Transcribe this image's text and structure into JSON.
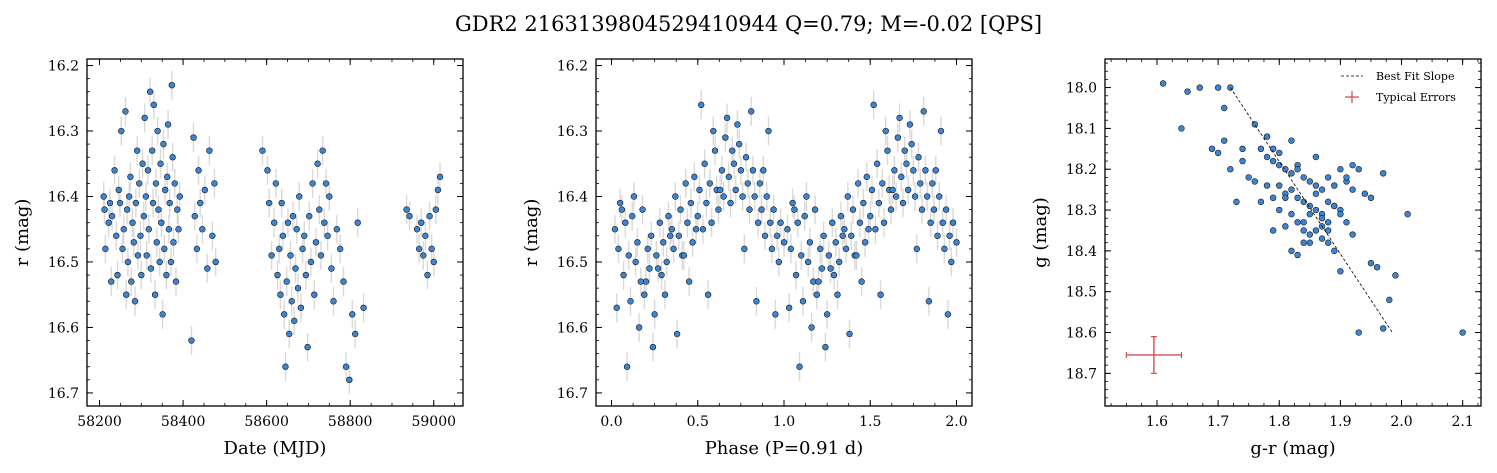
{
  "figure": {
    "title": "GDR2 2163139804529410944  Q=0.79; M=-0.02 [QPS]"
  },
  "colors": {
    "point_fill": "#3c85d4",
    "point_edge": "#1a1a1a",
    "errorbar": "#d9d9d9",
    "fit_line": "#000000",
    "typical_error": "#d05050"
  },
  "chart_data": [
    {
      "type": "scatter",
      "title": "",
      "xlabel": "Date (MJD)",
      "ylabel": "r (mag)",
      "xlim": [
        58170,
        59070
      ],
      "ylim": [
        16.72,
        16.19
      ],
      "y_inverted": true,
      "xticks": [
        58200,
        58400,
        58600,
        58800,
        59000
      ],
      "yticks": [
        16.2,
        16.3,
        16.4,
        16.5,
        16.6,
        16.7
      ],
      "xtick_labels": [
        "58200",
        "58400",
        "58600",
        "58800",
        "59000"
      ],
      "ytick_labels": [
        "16.2",
        "16.3",
        "16.4",
        "16.5",
        "16.6",
        "16.7"
      ],
      "series": [
        {
          "x": [
            58210,
            58212,
            58214,
            58222,
            58225,
            58228,
            58230,
            58236,
            58240,
            58243,
            58246,
            58249,
            58252,
            58255,
            58258,
            58262,
            58264,
            58266,
            58268,
            58271,
            58274,
            58276,
            58279,
            58282,
            58285,
            58287,
            58290,
            58292,
            58295,
            58298,
            58300,
            58303,
            58306,
            58308,
            58311,
            58313,
            58316,
            58318,
            58321,
            58323,
            58326,
            58328,
            58330,
            58333,
            58335,
            58337,
            58339,
            58341,
            58344,
            58346,
            58348,
            58351,
            58353,
            58355,
            58357,
            58360,
            58362,
            58364,
            58366,
            58368,
            58371,
            58373,
            58375,
            58377,
            58380,
            58383,
            58386,
            58389,
            58392,
            58420,
            58425,
            58428,
            58433,
            58437,
            58441,
            58446,
            58452,
            58458,
            58463,
            58470,
            58475,
            58478,
            58590,
            58602,
            58606,
            58612,
            58618,
            58622,
            58626,
            58630,
            58633,
            58636,
            58639,
            58642,
            58645,
            58648,
            58651,
            58654,
            58657,
            58660,
            58663,
            58666,
            58669,
            58672,
            58675,
            58678,
            58682,
            58686,
            58690,
            58694,
            58698,
            58702,
            58706,
            58710,
            58714,
            58718,
            58722,
            58726,
            58730,
            58734,
            58738,
            58742,
            58746,
            58750,
            58755,
            58760,
            58768,
            58776,
            58784,
            58790,
            58798,
            58805,
            58812,
            58818,
            58832,
            58935,
            58942,
            58960,
            58965,
            58970,
            58975,
            58980,
            58985,
            58990,
            58995,
            59000,
            59005,
            59010,
            59015
          ],
          "y": [
            16.4,
            16.42,
            16.48,
            16.44,
            16.41,
            16.53,
            16.43,
            16.36,
            16.46,
            16.52,
            16.39,
            16.41,
            16.3,
            16.48,
            16.45,
            16.27,
            16.55,
            16.42,
            16.5,
            16.4,
            16.37,
            16.53,
            16.44,
            16.47,
            16.56,
            16.41,
            16.33,
            16.49,
            16.38,
            16.46,
            16.52,
            16.35,
            16.43,
            16.28,
            16.4,
            16.49,
            16.36,
            16.45,
            16.24,
            16.51,
            16.33,
            16.41,
            16.26,
            16.55,
            16.38,
            16.47,
            16.3,
            16.42,
            16.5,
            16.35,
            16.44,
            16.58,
            16.32,
            16.48,
            16.39,
            16.52,
            16.37,
            16.29,
            16.45,
            16.41,
            16.5,
            16.23,
            16.34,
            16.47,
            16.38,
            16.53,
            16.42,
            16.45,
            16.4,
            16.62,
            16.31,
            16.43,
            16.48,
            16.36,
            16.41,
            16.45,
            16.39,
            16.51,
            16.33,
            16.46,
            16.38,
            16.5,
            16.33,
            16.36,
            16.41,
            16.49,
            16.44,
            16.38,
            16.52,
            16.48,
            16.55,
            16.41,
            16.46,
            16.58,
            16.66,
            16.53,
            16.44,
            16.61,
            16.49,
            16.56,
            16.43,
            16.59,
            16.51,
            16.45,
            16.54,
            16.4,
            16.57,
            16.48,
            16.46,
            16.52,
            16.63,
            16.43,
            16.5,
            16.38,
            16.55,
            16.47,
            16.35,
            16.42,
            16.49,
            16.33,
            16.44,
            16.38,
            16.46,
            16.4,
            16.51,
            16.56,
            16.45,
            16.48,
            16.53,
            16.66,
            16.68,
            16.58,
            16.61,
            16.44,
            16.57,
            16.42,
            16.43,
            16.45,
            16.48,
            16.44,
            16.49,
            16.46,
            16.52,
            16.43,
            16.48,
            16.5,
            16.42,
            16.39,
            16.37
          ],
          "yerr": 0.022
        }
      ]
    },
    {
      "type": "scatter",
      "title": "",
      "xlabel": "Phase (P=0.91 d)",
      "ylabel": "r (mag)",
      "xlim": [
        -0.09,
        2.09
      ],
      "ylim": [
        16.72,
        16.19
      ],
      "y_inverted": true,
      "xticks": [
        0.0,
        0.5,
        1.0,
        1.5,
        2.0
      ],
      "yticks": [
        16.2,
        16.3,
        16.4,
        16.5,
        16.6,
        16.7
      ],
      "xtick_labels": [
        "0.0",
        "0.5",
        "1.0",
        "1.5",
        "2.0"
      ],
      "ytick_labels": [
        "16.2",
        "16.3",
        "16.4",
        "16.5",
        "16.6",
        "16.7"
      ],
      "period_days": 0.91,
      "phase_folded": true,
      "series": [
        {
          "x": [
            0.02,
            0.04,
            0.05,
            0.07,
            0.08,
            0.1,
            0.11,
            0.12,
            0.14,
            0.15,
            0.17,
            0.18,
            0.19,
            0.21,
            0.22,
            0.23,
            0.25,
            0.26,
            0.28,
            0.29,
            0.3,
            0.32,
            0.33,
            0.35,
            0.36,
            0.37,
            0.39,
            0.4,
            0.41,
            0.43,
            0.44,
            0.46,
            0.47,
            0.48,
            0.5,
            0.51,
            0.53,
            0.54,
            0.55,
            0.57,
            0.58,
            0.6,
            0.61,
            0.62,
            0.64,
            0.65,
            0.66,
            0.68,
            0.69,
            0.71,
            0.72,
            0.73,
            0.75,
            0.76,
            0.78,
            0.79,
            0.8,
            0.82,
            0.83,
            0.85,
            0.86,
            0.87,
            0.89,
            0.9,
            0.92,
            0.93,
            0.94,
            0.96,
            0.97,
            0.98,
            1.0,
            0.03,
            0.09,
            0.16,
            0.24,
            0.31,
            0.38,
            0.45,
            0.52,
            0.59,
            0.67,
            0.74,
            0.81,
            0.88,
            0.95,
            0.06,
            0.13,
            0.2,
            0.27,
            0.34,
            0.42,
            0.49,
            0.56,
            0.63,
            0.7,
            0.77,
            0.84,
            0.91
          ],
          "y": [
            16.45,
            16.48,
            16.41,
            16.52,
            16.44,
            16.49,
            16.56,
            16.43,
            16.5,
            16.47,
            16.53,
            16.42,
            16.55,
            16.48,
            16.51,
            16.46,
            16.58,
            16.49,
            16.44,
            16.52,
            16.47,
            16.5,
            16.43,
            16.45,
            16.48,
            16.4,
            16.46,
            16.42,
            16.49,
            16.38,
            16.44,
            16.41,
            16.47,
            16.37,
            16.43,
            16.39,
            16.45,
            16.35,
            16.41,
            16.38,
            16.44,
            16.33,
            16.39,
            16.42,
            16.36,
            16.4,
            16.31,
            16.37,
            16.41,
            16.35,
            16.39,
            16.29,
            16.36,
            16.4,
            16.34,
            16.38,
            16.42,
            16.36,
            16.4,
            16.44,
            16.38,
            16.42,
            16.46,
            16.4,
            16.44,
            16.48,
            16.42,
            16.46,
            16.5,
            16.44,
            16.47,
            16.57,
            16.66,
            16.6,
            16.63,
            16.55,
            16.61,
            16.53,
            16.26,
            16.3,
            16.28,
            16.32,
            16.27,
            16.36,
            16.58,
            16.42,
            16.4,
            16.53,
            16.51,
            16.46,
            16.49,
            16.45,
            16.55,
            16.39,
            16.33,
            16.48,
            16.56,
            16.3
          ],
          "yerr": 0.022,
          "repeat_offset": 1.0
        }
      ]
    },
    {
      "type": "scatter",
      "title": "",
      "xlabel": "g-r (mag)",
      "ylabel": "g (mag)",
      "xlim": [
        1.515,
        2.13
      ],
      "ylim": [
        18.78,
        17.93
      ],
      "y_inverted": true,
      "xticks": [
        1.6,
        1.7,
        1.8,
        1.9,
        2.0,
        2.1
      ],
      "yticks": [
        18.0,
        18.1,
        18.2,
        18.3,
        18.4,
        18.5,
        18.6,
        18.7
      ],
      "xtick_labels": [
        "1.6",
        "1.7",
        "1.8",
        "1.9",
        "2.0",
        "2.1"
      ],
      "ytick_labels": [
        "18.0",
        "18.1",
        "18.2",
        "18.3",
        "18.4",
        "18.5",
        "18.6",
        "18.7"
      ],
      "legend": {
        "position": "top-right",
        "entries": [
          "Best Fit Slope",
          "Typical Errors"
        ]
      },
      "best_fit": {
        "x": [
          1.72,
          1.985
        ],
        "y": [
          18.0,
          18.6
        ]
      },
      "typical_error": {
        "x": 1.595,
        "y": 18.655,
        "xerr": 0.045,
        "yerr": 0.045
      },
      "series": [
        {
          "x": [
            1.61,
            1.64,
            1.65,
            1.67,
            1.69,
            1.7,
            1.71,
            1.71,
            1.72,
            1.73,
            1.74,
            1.75,
            1.76,
            1.76,
            1.77,
            1.77,
            1.78,
            1.78,
            1.79,
            1.79,
            1.79,
            1.8,
            1.8,
            1.8,
            1.81,
            1.81,
            1.81,
            1.82,
            1.82,
            1.82,
            1.82,
            1.83,
            1.83,
            1.83,
            1.83,
            1.84,
            1.84,
            1.84,
            1.84,
            1.85,
            1.85,
            1.85,
            1.85,
            1.86,
            1.86,
            1.86,
            1.86,
            1.87,
            1.87,
            1.87,
            1.87,
            1.88,
            1.88,
            1.88,
            1.88,
            1.89,
            1.89,
            1.89,
            1.9,
            1.9,
            1.9,
            1.91,
            1.91,
            1.92,
            1.92,
            1.93,
            1.94,
            1.95,
            1.96,
            1.97,
            1.97,
            1.98,
            1.99,
            2.01,
            2.1,
            1.7,
            1.72,
            1.74,
            1.78,
            1.8,
            1.82,
            1.84,
            1.86,
            1.88,
            1.9,
            1.92,
            1.85,
            1.87,
            1.89,
            1.83,
            1.81,
            1.79,
            1.93,
            1.95,
            1.91
          ],
          "y": [
            17.99,
            18.1,
            18.01,
            18.0,
            18.15,
            18.0,
            18.05,
            18.13,
            18.0,
            18.28,
            18.15,
            18.22,
            18.09,
            18.23,
            18.15,
            18.28,
            18.17,
            18.24,
            18.18,
            18.27,
            18.35,
            18.19,
            18.24,
            18.3,
            18.2,
            18.26,
            18.34,
            18.21,
            18.25,
            18.31,
            18.4,
            18.19,
            18.27,
            18.33,
            18.41,
            18.22,
            18.28,
            18.35,
            18.38,
            18.23,
            18.29,
            18.36,
            18.31,
            18.24,
            18.3,
            18.35,
            18.26,
            18.25,
            18.31,
            18.37,
            18.34,
            18.22,
            18.28,
            18.33,
            18.38,
            18.24,
            18.29,
            18.4,
            18.2,
            18.3,
            18.45,
            18.23,
            18.33,
            18.19,
            18.25,
            18.6,
            18.26,
            18.43,
            18.44,
            18.21,
            18.59,
            18.52,
            18.46,
            18.31,
            18.6,
            18.16,
            18.2,
            18.18,
            18.12,
            18.16,
            18.13,
            18.33,
            18.17,
            18.35,
            18.31,
            18.36,
            18.38,
            18.32,
            18.29,
            18.2,
            18.27,
            18.15,
            18.2,
            18.27,
            18.22
          ],
          "yerr": 0
        }
      ]
    }
  ]
}
